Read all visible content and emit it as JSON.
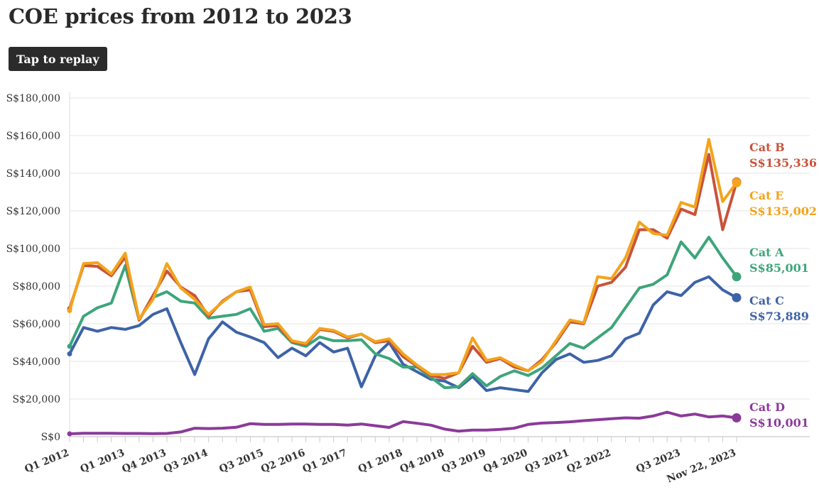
{
  "title": "COE prices from 2012 to 2023",
  "replay_label": "Tap to replay",
  "chart_data": {
    "type": "line",
    "title": "COE prices from 2012 to 2023",
    "ylim": [
      0,
      180000
    ],
    "yticks": [
      0,
      20000,
      40000,
      60000,
      80000,
      100000,
      120000,
      140000,
      160000,
      180000
    ],
    "ytick_labels": [
      "S$0",
      "S$20,000",
      "S$40,000",
      "S$60,000",
      "S$80,000",
      "S$100,000",
      "S$120,000",
      "S$140,000",
      "S$160,000",
      "S$180,000"
    ],
    "x": [
      "Q1 2012",
      "Q2 2012",
      "Q3 2012",
      "Q4 2012",
      "Q1 2013",
      "Q2 2013",
      "Q3 2013",
      "Q4 2013",
      "Q1 2014",
      "Q2 2014",
      "Q3 2014",
      "Q4 2014",
      "Q1 2015",
      "Q2 2015",
      "Q3 2015",
      "Q4 2015",
      "Q1 2016",
      "Q2 2016",
      "Q3 2016",
      "Q4 2016",
      "Q1 2017",
      "Q2 2017",
      "Q3 2017",
      "Q4 2017",
      "Q1 2018",
      "Q2 2018",
      "Q3 2018",
      "Q4 2018",
      "Q1 2019",
      "Q2 2019",
      "Q3 2019",
      "Q4 2019",
      "Q1 2020",
      "Q2 2020",
      "Q3 2020",
      "Q4 2020",
      "Q1 2021",
      "Q2 2021",
      "Q3 2021",
      "Q4 2021",
      "Q1 2022",
      "Q2 2022",
      "Q3 2022",
      "Q4 2022",
      "Q1 2023",
      "Q2 2023",
      "Q3 2023",
      "Q4 2023",
      "Nov 22, 2023"
    ],
    "xtick_labels": [
      {
        "index": 0,
        "label": "Q1 2012"
      },
      {
        "index": 4,
        "label": "Q1 2013"
      },
      {
        "index": 7,
        "label": "Q4 2013"
      },
      {
        "index": 10,
        "label": "Q3 2014"
      },
      {
        "index": 14,
        "label": "Q3 2015"
      },
      {
        "index": 17,
        "label": "Q2 2016"
      },
      {
        "index": 20,
        "label": "Q1 2017"
      },
      {
        "index": 24,
        "label": "Q1 2018"
      },
      {
        "index": 27,
        "label": "Q4 2018"
      },
      {
        "index": 30,
        "label": "Q3 2019"
      },
      {
        "index": 33,
        "label": "Q4 2020"
      },
      {
        "index": 36,
        "label": "Q3 2021"
      },
      {
        "index": 39,
        "label": "Q2 2022"
      },
      {
        "index": 44,
        "label": "Q3 2023"
      },
      {
        "index": 48,
        "label": "Nov 22, 2023"
      }
    ],
    "series": [
      {
        "name": "Cat D",
        "color": "#8b3a9a",
        "end_label": "S$10,001",
        "values": [
          1500,
          1800,
          1800,
          1800,
          1700,
          1700,
          1600,
          1700,
          2500,
          4500,
          4300,
          4500,
          5000,
          6900,
          6500,
          6500,
          6700,
          6700,
          6500,
          6500,
          6100,
          6700,
          5800,
          4900,
          8000,
          7100,
          6100,
          4000,
          2900,
          3500,
          3500,
          3900,
          4500,
          6500,
          7200,
          7500,
          7900,
          8500,
          9000,
          9500,
          10000,
          9800,
          11000,
          13000,
          11000,
          12000,
          10500,
          11000,
          10001
        ]
      },
      {
        "name": "Cat C",
        "color": "#3d63a8",
        "end_label": "S$73,889",
        "values": [
          44000,
          58000,
          56000,
          58000,
          57000,
          59000,
          65000,
          68000,
          50000,
          33000,
          52000,
          61000,
          55500,
          53000,
          50000,
          42000,
          47000,
          43000,
          50000,
          45000,
          47000,
          26500,
          43000,
          50000,
          38500,
          34500,
          30500,
          29500,
          26000,
          32000,
          24500,
          26000,
          25000,
          24000,
          34000,
          41000,
          44000,
          39500,
          40500,
          43000,
          52000,
          55000,
          70000,
          77000,
          75000,
          82000,
          85000,
          78000,
          73889
        ]
      },
      {
        "name": "Cat A",
        "color": "#3ea57a",
        "end_label": "S$85,001",
        "values": [
          48000,
          64000,
          68500,
          71000,
          91000,
          62000,
          74000,
          77000,
          72000,
          71000,
          63000,
          64000,
          65000,
          68000,
          56000,
          57500,
          50000,
          48000,
          53000,
          51000,
          51000,
          51500,
          44000,
          41500,
          37000,
          37000,
          31500,
          26000,
          26500,
          33500,
          27000,
          32000,
          35000,
          32500,
          36500,
          43000,
          49500,
          47000,
          52500,
          58000,
          68500,
          79000,
          81000,
          86000,
          103500,
          95000,
          106000,
          95000,
          85001
        ]
      },
      {
        "name": "Cat B",
        "color": "#c9533b",
        "end_label": "S$135,336",
        "values": [
          68000,
          91000,
          90500,
          85500,
          95500,
          62000,
          75000,
          88000,
          79500,
          75000,
          64000,
          72000,
          77000,
          78000,
          58500,
          59000,
          50500,
          49000,
          57000,
          56000,
          52500,
          54500,
          50000,
          51000,
          42500,
          37500,
          32500,
          31000,
          34000,
          48000,
          39500,
          41500,
          37000,
          35000,
          41000,
          50000,
          61000,
          60000,
          80000,
          82000,
          90000,
          110000,
          110000,
          105500,
          121000,
          118000,
          150000,
          110000,
          135336
        ]
      },
      {
        "name": "Cat E",
        "color": "#f2a41c",
        "end_label": "S$135,002",
        "values": [
          67000,
          92000,
          92500,
          86500,
          97500,
          62500,
          73000,
          92000,
          79000,
          73000,
          65000,
          71500,
          77000,
          79500,
          59500,
          60000,
          51000,
          49500,
          57500,
          56500,
          53000,
          54500,
          50500,
          52000,
          44000,
          38000,
          33000,
          33000,
          34000,
          52500,
          40500,
          42000,
          38000,
          35000,
          40000,
          51000,
          62000,
          60500,
          85000,
          84000,
          95000,
          114000,
          108000,
          107000,
          124500,
          122000,
          158000,
          125000,
          135002
        ]
      }
    ]
  }
}
